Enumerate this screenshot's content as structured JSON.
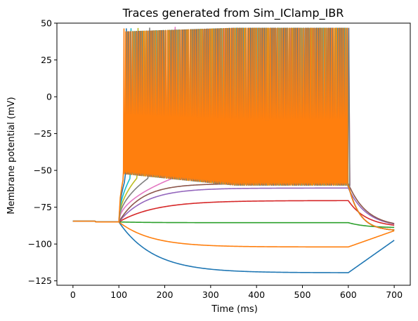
{
  "chart_data": {
    "type": "line",
    "title": "Traces generated from Sim_IClamp_IBR",
    "xlabel": "Time (ms)",
    "ylabel": "Membrane potential (mV)",
    "xlim": [
      -35,
      735
    ],
    "ylim": [
      -128,
      50
    ],
    "xticks": [
      0,
      100,
      200,
      300,
      400,
      500,
      600,
      700
    ],
    "yticks": [
      -125,
      -100,
      -75,
      -50,
      -25,
      0,
      25
    ],
    "ytick_labels": [
      "−125",
      "−100",
      "−75",
      "−50",
      "−25",
      "0",
      "25",
      "50"
    ],
    "yticks_full": [
      -125,
      -100,
      -75,
      -50,
      -25,
      0,
      25,
      50
    ],
    "grid": false,
    "stimulus_ms": [
      100,
      600
    ],
    "rest_mv": -85,
    "series": [
      {
        "color": "#1f77b4",
        "kind": "sub",
        "steady": -119.5,
        "tau": 75
      },
      {
        "color": "#ff7f0e",
        "kind": "sub",
        "steady": -102,
        "tau": 70
      },
      {
        "color": "#2ca02c",
        "kind": "sub",
        "steady": -85.5,
        "tau": 60
      },
      {
        "color": "#d62728",
        "kind": "sub",
        "steady": -70.5,
        "tau": 80
      },
      {
        "color": "#9467bd",
        "kind": "sub",
        "steady": -62,
        "tau": 60
      },
      {
        "color": "#8c564b",
        "kind": "sub",
        "steady": -59,
        "tau": 50
      },
      {
        "color": "#e377c2",
        "kind": "spike",
        "first_spike": 220,
        "isi": 9
      },
      {
        "color": "#7f7f7f",
        "kind": "spike",
        "first_spike": 165,
        "isi": 7
      },
      {
        "color": "#bcbd22",
        "kind": "spike",
        "first_spike": 140,
        "isi": 6
      },
      {
        "color": "#17becf",
        "kind": "spike",
        "first_spike": 125,
        "isi": 5
      },
      {
        "color": "#1f77b4",
        "kind": "spike",
        "first_spike": 115,
        "isi": 4.5
      },
      {
        "color": "#ff7f0e",
        "kind": "spike",
        "first_spike": 110,
        "isi": 3.8
      }
    ]
  }
}
